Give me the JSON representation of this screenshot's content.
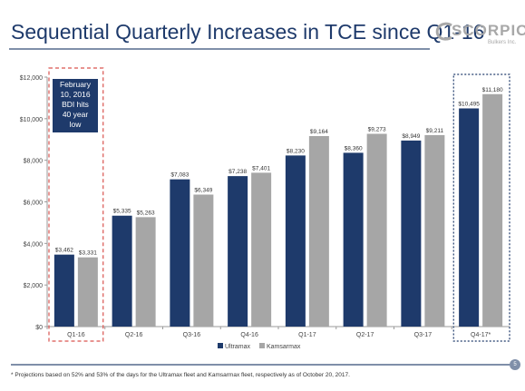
{
  "header": {
    "title": "Sequential Quarterly Increases in TCE since Q1-16",
    "logo_word": "SCORPIO",
    "logo_sub": "Bulkers Inc."
  },
  "callout": {
    "lines": [
      "February",
      "10, 2016",
      "BDI hits",
      "40 year",
      "low"
    ]
  },
  "footnote": "* Projections based on 52% and 53% of the days for the Ultramax fleet and Kamsarmax fleet, respectively as of October 20, 2017.",
  "page_number": "5",
  "colors": {
    "ultramax": "#1e3a6b",
    "kamsarmax": "#a6a6a6",
    "highlight_q1": "#d9534f",
    "highlight_q4": "#1e3a6b",
    "title": "#1e3a6b"
  },
  "chart_data": {
    "type": "bar",
    "title": "Sequential Quarterly Increases in TCE since Q1-16",
    "categories": [
      "Q1-16",
      "Q2-16",
      "Q3-16",
      "Q4-16",
      "Q1-17",
      "Q2-17",
      "Q3-17",
      "Q4-17*"
    ],
    "series": [
      {
        "name": "Ultramax",
        "values": [
          3462,
          5335,
          7083,
          7238,
          8230,
          8360,
          8949,
          10495
        ],
        "labels": [
          "$3,462",
          "$5,335",
          "$7,083",
          "$7,238",
          "$8,230",
          "$8,360",
          "$8,949",
          "$10,495"
        ]
      },
      {
        "name": "Kamsarmax",
        "values": [
          3331,
          5263,
          6349,
          7401,
          9164,
          9273,
          9211,
          11180
        ],
        "labels": [
          "$3,331",
          "$5,263",
          "$6,349",
          "$7,401",
          "$9,164",
          "$9,273",
          "$9,211",
          "$11,180"
        ]
      }
    ],
    "ylim": [
      0,
      12000
    ],
    "yticks": [
      0,
      2000,
      4000,
      6000,
      8000,
      10000,
      12000
    ],
    "ytick_labels": [
      "$0",
      "$2,000",
      "$4,000",
      "$6,000",
      "$8,000",
      "$10,000",
      "$12,000"
    ],
    "xlabel": "",
    "ylabel": "",
    "legend_position": "bottom",
    "grid": false
  }
}
